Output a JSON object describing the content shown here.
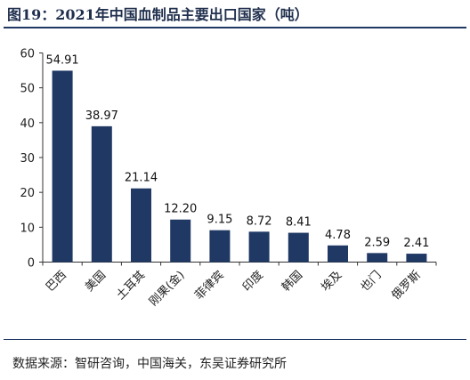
{
  "title": "图19：2021年中国血制品主要出口国家（吨）",
  "source": "数据来源：智研咨询，中国海关，东吴证券研究所",
  "colors": {
    "bar": "#1f3864",
    "axis": "#333333"
  },
  "chart_data": {
    "type": "bar",
    "title": "图19：2021年中国血制品主要出口国家（吨）",
    "categories": [
      "巴西",
      "美国",
      "土耳其",
      "刚果(金)",
      "菲律宾",
      "印度",
      "韩国",
      "埃及",
      "也门",
      "俄罗斯"
    ],
    "values": [
      54.91,
      38.97,
      21.14,
      12.2,
      9.15,
      8.72,
      8.41,
      4.78,
      2.59,
      2.41
    ],
    "value_labels": [
      "54.91",
      "38.97",
      "21.14",
      "12.20",
      "9.15",
      "8.72",
      "8.41",
      "4.78",
      "2.59",
      "2.41"
    ],
    "yticks": [
      "0",
      "10",
      "20",
      "30",
      "40",
      "50",
      "60"
    ],
    "ylim": [
      0,
      60
    ],
    "xlabel": "",
    "ylabel": "",
    "grid": false
  }
}
